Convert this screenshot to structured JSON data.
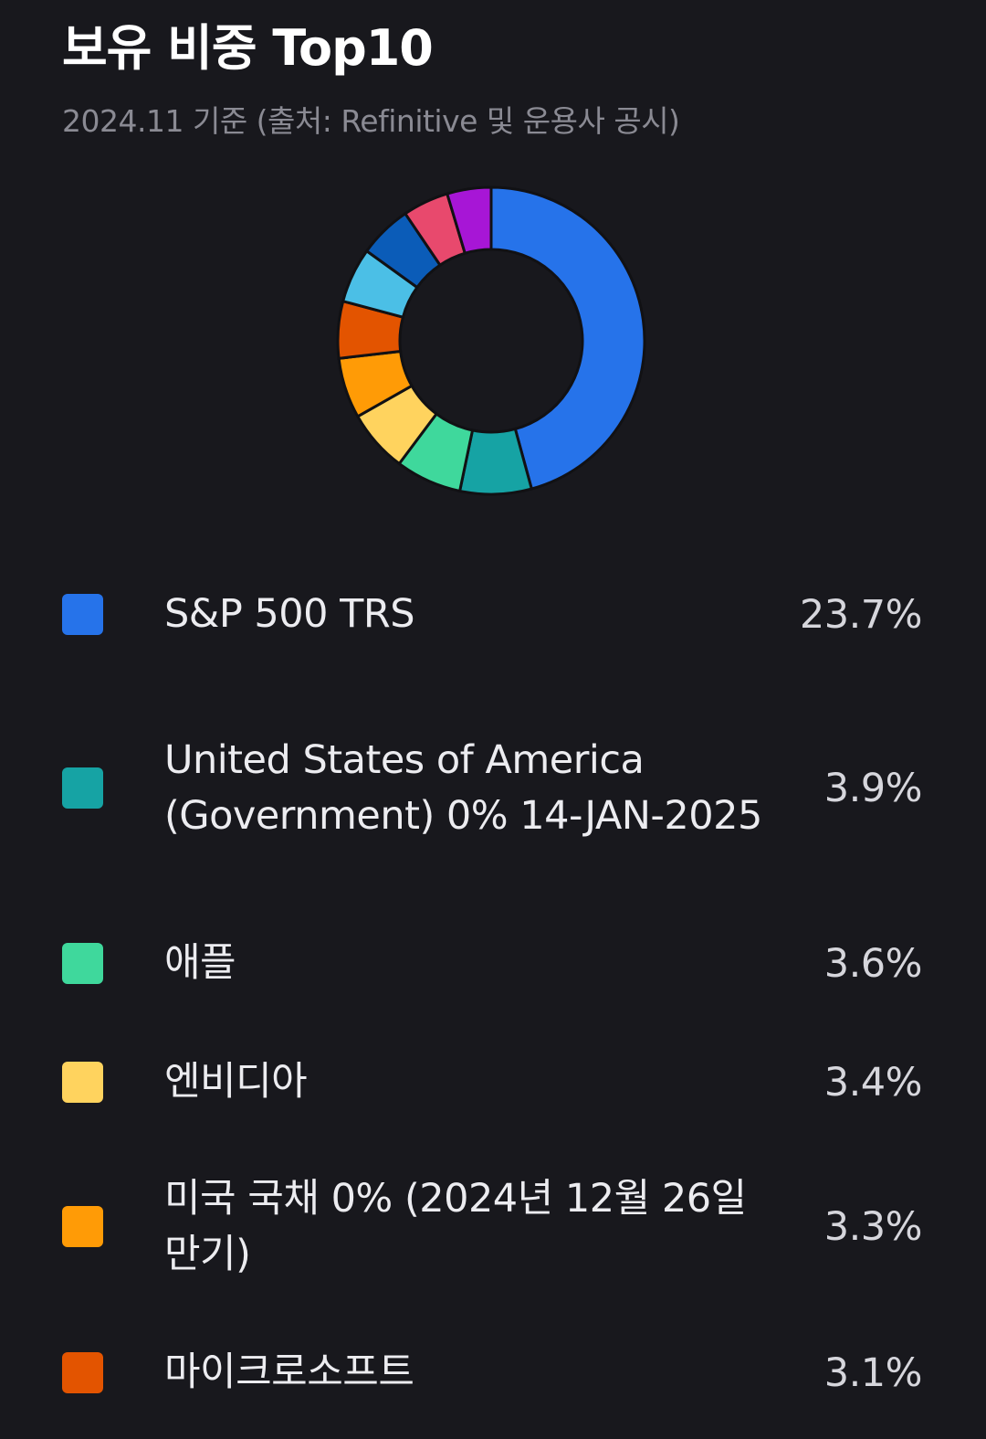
{
  "header": {
    "title": "보유 비중 Top10",
    "subtitle": "2024.11 기준 (출처: Refinitive 및 운용사 공시)"
  },
  "holdings": [
    {
      "name": "S&P 500 TRS",
      "weight": "23.7%",
      "color": "#2673ea"
    },
    {
      "name": "United States of America (Government) 0% 14-JAN-2025",
      "weight": "3.9%",
      "color": "#16a3a4"
    },
    {
      "name": "애플",
      "weight": "3.6%",
      "color": "#3fd89c"
    },
    {
      "name": "엔비디아",
      "weight": "3.4%",
      "color": "#ffd35e"
    },
    {
      "name": "미국 국채 0% (2024년 12월 26일 만기)",
      "weight": "3.3%",
      "color": "#ff9b06"
    },
    {
      "name": "마이크로소프트",
      "weight": "3.1%",
      "color": "#e35400"
    }
  ],
  "chart_data": {
    "type": "pie",
    "variant": "donut",
    "categories": [
      "S&P 500 TRS",
      "United States of America (Government) 0% 14-JAN-2025",
      "애플",
      "엔비디아",
      "미국 국채 0% (2024년 12월 26일 만기)",
      "마이크로소프트",
      "",
      "",
      "",
      ""
    ],
    "values": [
      23.7,
      3.9,
      3.6,
      3.4,
      3.3,
      3.1,
      3.0,
      2.9,
      2.5,
      2.4
    ],
    "colors": [
      "#2673ea",
      "#16a3a4",
      "#3fd89c",
      "#ffd35e",
      "#ff9b06",
      "#e35400",
      "#4bbfe6",
      "#0b5cb8",
      "#e8496d",
      "#a716d6"
    ],
    "legend": "below"
  }
}
